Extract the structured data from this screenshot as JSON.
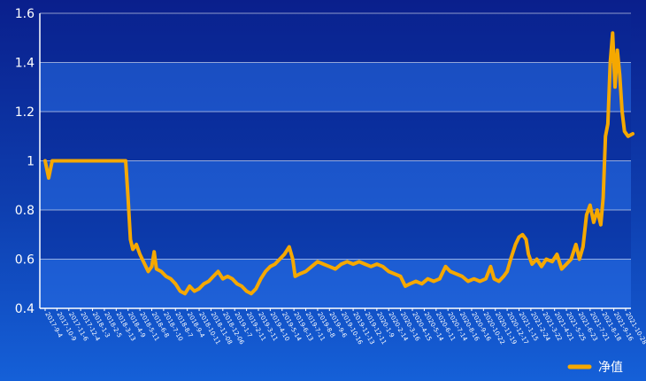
{
  "chart_data": {
    "type": "line",
    "ylim": [
      0.4,
      1.6
    ],
    "yticks": [
      "0.4",
      "0.6",
      "0.8",
      "1",
      "1.2",
      "1.4",
      "1.6"
    ],
    "ytick_values": [
      0.4,
      0.6,
      0.8,
      1.0,
      1.2,
      1.4,
      1.6
    ],
    "xticks": [
      "2017-9-4",
      "2017-10-9",
      "2017-11-6",
      "2017-12-4",
      "2018-1-3",
      "2018-2-5",
      "2018-3-13",
      "2018-4-9",
      "2018-5-11",
      "2018-6-8",
      "2018-7-10",
      "2018-8-7",
      "2018-9-4",
      "2018-10-11",
      "2018-11-08",
      "2018-12-06",
      "2019-1-7",
      "2019-2-11",
      "2019-3-11",
      "2019-4-10",
      "2019-5-14",
      "2019-6-13",
      "2019-7-11",
      "2019-8-8",
      "2019-9-6",
      "2019-10-16",
      "2019-11-13",
      "2019-12-11",
      "2020-1-9",
      "2020-2-14",
      "2020-3-16",
      "2020-4-15",
      "2020-5-14",
      "2020-6-11",
      "2020-7-14",
      "2020-8-16",
      "2020-9-16",
      "2020-10-22",
      "2020-11-19",
      "2020-12-17",
      "2021-1-15",
      "2021-2-24",
      "2021-3-22",
      "2021-4-21",
      "2021-5-25",
      "2021-6-23",
      "2021-7-21",
      "2021-8-18",
      "2021-9-16",
      "2021-10-28"
    ],
    "grid": true,
    "legend_position": "bottom-right",
    "series": [
      {
        "name": "净值",
        "color": "#f5a800",
        "points": [
          [
            0,
            1.0
          ],
          [
            0.3,
            0.93
          ],
          [
            0.6,
            1.0
          ],
          [
            2,
            1.0
          ],
          [
            4,
            1.0
          ],
          [
            6,
            1.0
          ],
          [
            6.8,
            1.0
          ],
          [
            7.0,
            0.85
          ],
          [
            7.2,
            0.68
          ],
          [
            7.4,
            0.64
          ],
          [
            7.7,
            0.66
          ],
          [
            8.0,
            0.62
          ],
          [
            8.4,
            0.58
          ],
          [
            8.7,
            0.55
          ],
          [
            9.0,
            0.57
          ],
          [
            9.2,
            0.63
          ],
          [
            9.4,
            0.56
          ],
          [
            9.8,
            0.55
          ],
          [
            10.2,
            0.53
          ],
          [
            10.6,
            0.52
          ],
          [
            11.0,
            0.5
          ],
          [
            11.4,
            0.47
          ],
          [
            11.8,
            0.46
          ],
          [
            12.2,
            0.49
          ],
          [
            12.6,
            0.47
          ],
          [
            13.0,
            0.48
          ],
          [
            13.4,
            0.5
          ],
          [
            13.8,
            0.51
          ],
          [
            14.2,
            0.53
          ],
          [
            14.6,
            0.55
          ],
          [
            15.0,
            0.52
          ],
          [
            15.4,
            0.53
          ],
          [
            15.8,
            0.52
          ],
          [
            16.2,
            0.5
          ],
          [
            16.6,
            0.49
          ],
          [
            17.0,
            0.47
          ],
          [
            17.4,
            0.46
          ],
          [
            17.8,
            0.48
          ],
          [
            18.2,
            0.52
          ],
          [
            18.6,
            0.55
          ],
          [
            19.0,
            0.57
          ],
          [
            19.4,
            0.58
          ],
          [
            19.8,
            0.6
          ],
          [
            20.2,
            0.62
          ],
          [
            20.6,
            0.65
          ],
          [
            20.9,
            0.6
          ],
          [
            21.1,
            0.53
          ],
          [
            21.5,
            0.54
          ],
          [
            22.0,
            0.55
          ],
          [
            22.5,
            0.57
          ],
          [
            23.0,
            0.59
          ],
          [
            23.5,
            0.58
          ],
          [
            24.0,
            0.57
          ],
          [
            24.5,
            0.56
          ],
          [
            25.0,
            0.58
          ],
          [
            25.5,
            0.59
          ],
          [
            26.0,
            0.58
          ],
          [
            26.5,
            0.59
          ],
          [
            27.0,
            0.58
          ],
          [
            27.5,
            0.57
          ],
          [
            28.0,
            0.58
          ],
          [
            28.5,
            0.57
          ],
          [
            29.0,
            0.55
          ],
          [
            29.5,
            0.54
          ],
          [
            30.0,
            0.53
          ],
          [
            30.4,
            0.49
          ],
          [
            30.8,
            0.5
          ],
          [
            31.3,
            0.51
          ],
          [
            31.8,
            0.5
          ],
          [
            32.3,
            0.52
          ],
          [
            32.8,
            0.51
          ],
          [
            33.3,
            0.52
          ],
          [
            33.8,
            0.57
          ],
          [
            34.2,
            0.55
          ],
          [
            34.7,
            0.54
          ],
          [
            35.2,
            0.53
          ],
          [
            35.7,
            0.51
          ],
          [
            36.2,
            0.52
          ],
          [
            36.7,
            0.51
          ],
          [
            37.2,
            0.52
          ],
          [
            37.6,
            0.57
          ],
          [
            37.9,
            0.52
          ],
          [
            38.3,
            0.51
          ],
          [
            38.7,
            0.53
          ],
          [
            39.0,
            0.55
          ],
          [
            39.3,
            0.6
          ],
          [
            39.7,
            0.66
          ],
          [
            40.0,
            0.69
          ],
          [
            40.3,
            0.7
          ],
          [
            40.6,
            0.68
          ],
          [
            40.8,
            0.62
          ],
          [
            41.1,
            0.58
          ],
          [
            41.5,
            0.6
          ],
          [
            41.9,
            0.57
          ],
          [
            42.3,
            0.6
          ],
          [
            42.8,
            0.59
          ],
          [
            43.2,
            0.62
          ],
          [
            43.6,
            0.56
          ],
          [
            44.0,
            0.58
          ],
          [
            44.4,
            0.6
          ],
          [
            44.8,
            0.66
          ],
          [
            45.1,
            0.6
          ],
          [
            45.4,
            0.65
          ],
          [
            45.7,
            0.78
          ],
          [
            46.0,
            0.82
          ],
          [
            46.3,
            0.75
          ],
          [
            46.6,
            0.8
          ],
          [
            46.9,
            0.74
          ],
          [
            47.1,
            0.85
          ],
          [
            47.3,
            1.1
          ],
          [
            47.5,
            1.15
          ],
          [
            47.7,
            1.4
          ],
          [
            47.9,
            1.52
          ],
          [
            48.1,
            1.3
          ],
          [
            48.3,
            1.45
          ],
          [
            48.5,
            1.35
          ],
          [
            48.7,
            1.2
          ],
          [
            48.9,
            1.12
          ],
          [
            49.2,
            1.1
          ],
          [
            49.6,
            1.11
          ]
        ]
      }
    ]
  }
}
